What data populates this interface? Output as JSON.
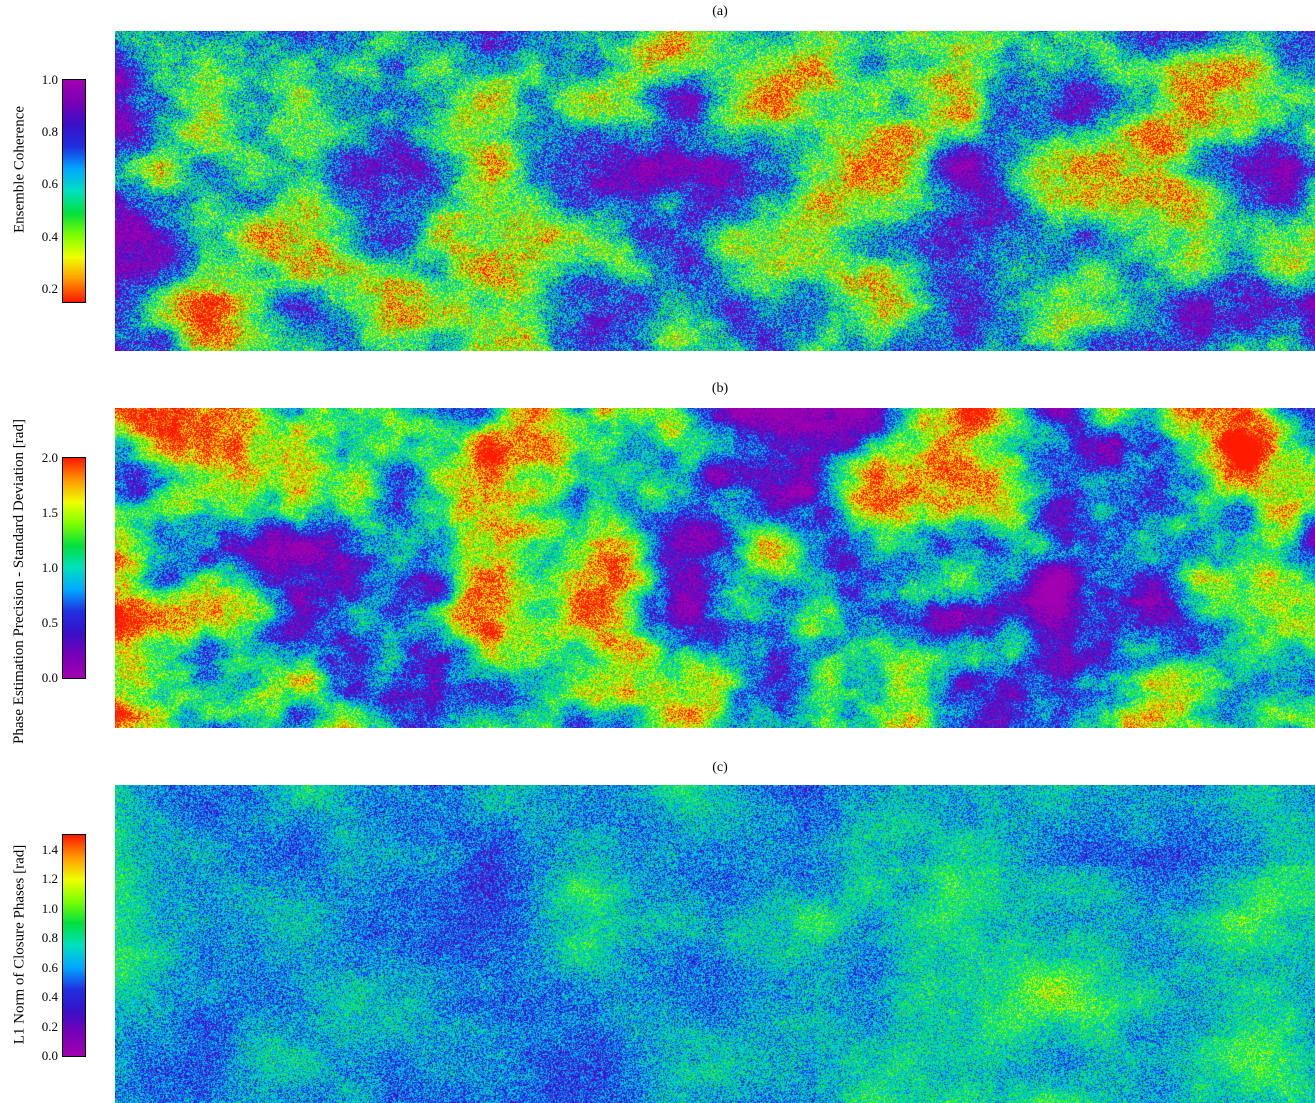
{
  "chart_data": [
    {
      "type": "heatmap",
      "title": "(a)",
      "colorbar_label": "Ensemble Coherence",
      "vmin": 0.15,
      "vmax": 1.0,
      "ticks": [
        0.2,
        0.4,
        0.6,
        0.8,
        1.0
      ],
      "tick_labels": [
        "0.2",
        "0.4",
        "0.6",
        "0.8",
        "1.0"
      ],
      "colormap": [
        "#ff1a00",
        "#ff9a00",
        "#f0ff00",
        "#7dff00",
        "#00e040",
        "#00e0c0",
        "#00a8ff",
        "#2030e0",
        "#3a10c8",
        "#7a00b8",
        "#a000b0"
      ],
      "colormap_direction": "low-red-to-high-purple"
    },
    {
      "type": "heatmap",
      "title": "(b)",
      "colorbar_label": "Phase Estimation Precision - Standard Deviation [rad]",
      "vmin": 0.0,
      "vmax": 2.0,
      "ticks": [
        0.0,
        0.5,
        1.0,
        1.5,
        2.0
      ],
      "tick_labels": [
        "0.0",
        "0.5",
        "1.0",
        "1.5",
        "2.0"
      ],
      "colormap": [
        "#a000b0",
        "#7a00b8",
        "#3a10c8",
        "#2030e0",
        "#00a8ff",
        "#00e0c0",
        "#00e040",
        "#7dff00",
        "#f0ff00",
        "#ff9a00",
        "#ff1a00"
      ],
      "colormap_direction": "low-purple-to-high-red"
    },
    {
      "type": "heatmap",
      "title": "(c)",
      "colorbar_label": "L1 Norm of Closure Phases [rad]",
      "vmin": 0.0,
      "vmax": 1.5,
      "ticks": [
        0.0,
        0.2,
        0.4,
        0.6,
        0.8,
        1.0,
        1.2,
        1.4
      ],
      "tick_labels": [
        "0.0",
        "0.2",
        "0.4",
        "0.6",
        "0.8",
        "1.0",
        "1.2",
        "1.4"
      ],
      "colormap": [
        "#a000b0",
        "#7a00b8",
        "#3a10c8",
        "#2030e0",
        "#00a8ff",
        "#00e0c0",
        "#00e040",
        "#7dff00",
        "#f0ff00",
        "#ff9a00",
        "#ff1a00"
      ],
      "colormap_direction": "low-purple-to-high-red"
    }
  ]
}
